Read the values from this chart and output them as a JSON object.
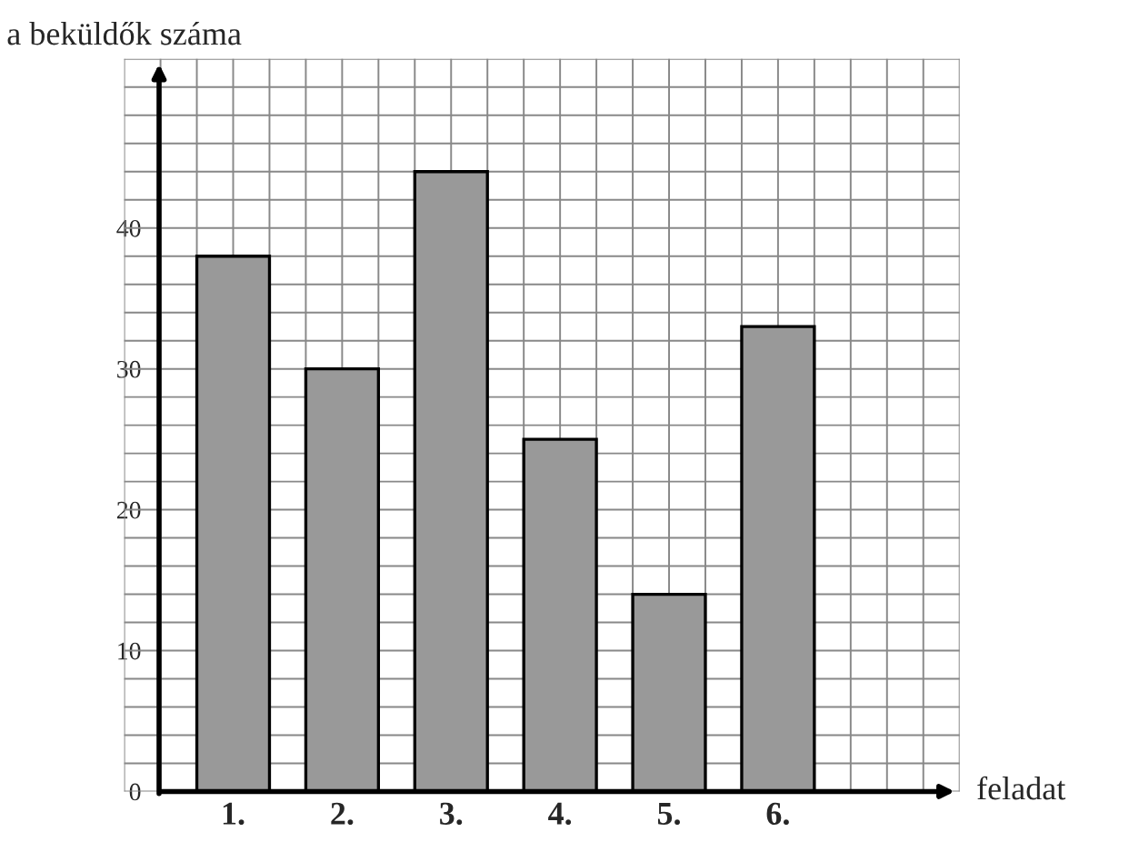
{
  "chart_data": {
    "type": "bar",
    "ylabel": "a beküldők száma",
    "xlabel": "feladat",
    "categories": [
      "1.",
      "2.",
      "3.",
      "4.",
      "5.",
      "6."
    ],
    "values": [
      38,
      30,
      44,
      25,
      14,
      33
    ],
    "color": "#999999",
    "ylim": [
      0,
      52
    ],
    "yticks": [
      0,
      10,
      20,
      30,
      40
    ],
    "grid": true
  }
}
